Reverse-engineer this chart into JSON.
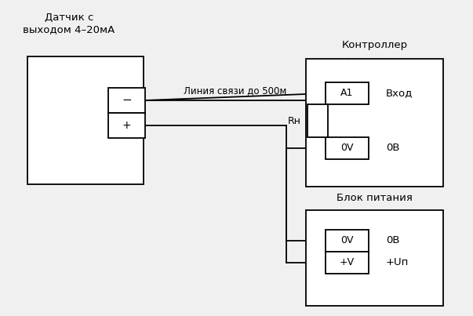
{
  "bg_color": "#f0f0f0",
  "line_color": "#000000",
  "box_color": "#ffffff",
  "text_color": "#000000",
  "title_sensor": "Датчик с\nвыходом 4–20мА",
  "title_controller": "Контроллер",
  "title_psu": "Блок питания",
  "label_line": "Линия связи до 500м",
  "label_minus": "−",
  "label_plus": "+",
  "label_A1": "A1",
  "label_Rh": "Rн",
  "label_0V_ctrl": "0V",
  "label_0V_psu": "0V",
  "label_pV": "+V",
  "label_vhod": "Вход",
  "label_0B_ctrl": "0В",
  "label_0B_psu": "0В",
  "label_pUp": "+Uп",
  "figsize": [
    6.03,
    4.03
  ],
  "dpi": 100
}
